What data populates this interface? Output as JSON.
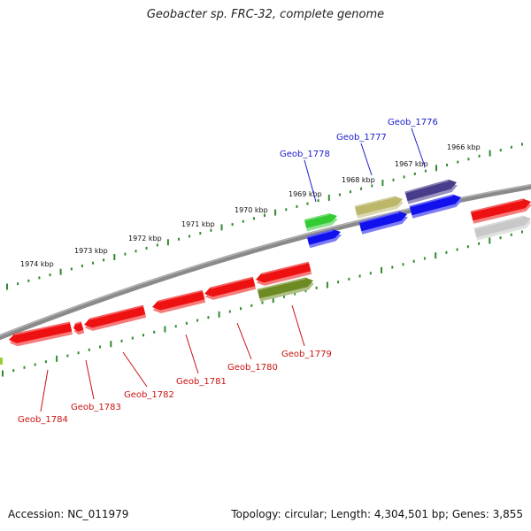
{
  "title": "Geobacter sp. FRC-32, complete genome",
  "footer": {
    "accession": "Accession: NC_011979",
    "summary": "Topology: circular; Length: 4,304,501 bp; Genes: 3,855"
  },
  "colors": {
    "backbone": "#8a8a8a",
    "tick": "#2e8b2e",
    "label_forward": "#1a1acc",
    "label_reverse": "#cc1111",
    "red": "#ee1111",
    "blue": "#1111ee",
    "green": "#33cc33",
    "olive": "#6e8b23",
    "khaki": "#bdb76b",
    "purple": "#483d8b",
    "gray": "#c8c8c8"
  },
  "kbp_labels": [
    "1974 kbp",
    "1973 kbp",
    "1972 kbp",
    "1971 kbp",
    "1970 kbp",
    "1969 kbp",
    "1968 kbp",
    "1967 kbp",
    "1966 kbp"
  ],
  "gene_labels": [
    {
      "name": "Geob_1776",
      "strand": "forward"
    },
    {
      "name": "Geob_1777",
      "strand": "forward"
    },
    {
      "name": "Geob_1778",
      "strand": "forward"
    },
    {
      "name": "Geob_1779",
      "strand": "reverse"
    },
    {
      "name": "Geob_1780",
      "strand": "reverse"
    },
    {
      "name": "Geob_1781",
      "strand": "reverse"
    },
    {
      "name": "Geob_1782",
      "strand": "reverse"
    },
    {
      "name": "Geob_1783",
      "strand": "reverse"
    },
    {
      "name": "Geob_1784",
      "strand": "reverse"
    }
  ]
}
